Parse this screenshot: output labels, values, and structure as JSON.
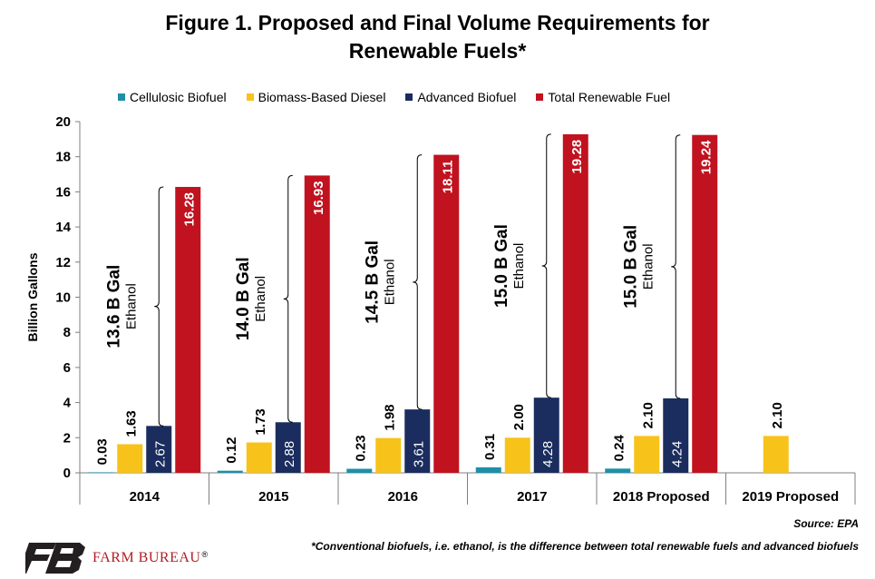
{
  "title_lines": [
    "Figure 1. Proposed and Final Volume Requirements for",
    "Renewable Fuels*"
  ],
  "source": "Source: EPA",
  "footnote": "*Conventional biofuels, i.e. ethanol, is the difference between total renewable fuels and advanced biofuels",
  "logo": {
    "text": "FARM BUREAU",
    "mark": "®",
    "brand_color": "#b01e23"
  },
  "chart_data": {
    "type": "bar",
    "categories": [
      "2014",
      "2015",
      "2016",
      "2017",
      "2018 Proposed",
      "2019 Proposed"
    ],
    "series": [
      {
        "name": "Cellulosic Biofuel",
        "color": "#1f8fa8",
        "values": [
          0.03,
          0.12,
          0.23,
          0.31,
          0.24,
          null
        ],
        "labels": [
          "0.03",
          "0.12",
          "0.23",
          "0.31",
          "0.24",
          ""
        ]
      },
      {
        "name": "Biomass-Based Diesel",
        "color": "#f7c31a",
        "values": [
          1.63,
          1.73,
          1.98,
          2.0,
          2.1,
          2.1
        ],
        "labels": [
          "1.63",
          "1.73",
          "1.98",
          "2.00",
          "2.10",
          "2.10"
        ]
      },
      {
        "name": "Advanced Biofuel",
        "color": "#1b2d5e",
        "values": [
          2.67,
          2.88,
          3.61,
          4.28,
          4.24,
          null
        ],
        "labels": [
          "2.67",
          "2.88",
          "3.61",
          "4.28",
          "4.24",
          ""
        ]
      },
      {
        "name": "Total Renewable Fuel",
        "color": "#c1121f",
        "values": [
          16.28,
          16.93,
          18.11,
          19.28,
          19.24,
          null
        ],
        "labels": [
          "16.28",
          "16.93",
          "18.11",
          "19.28",
          "19.24",
          ""
        ]
      }
    ],
    "ethanol_annotations": [
      {
        "category": "2014",
        "amount": "13.6 B Gal",
        "label": "Ethanol",
        "from": 2.67,
        "to": 16.28
      },
      {
        "category": "2015",
        "amount": "14.0 B Gal",
        "label": "Ethanol",
        "from": 2.88,
        "to": 16.93
      },
      {
        "category": "2016",
        "amount": "14.5 B Gal",
        "label": "Ethanol",
        "from": 3.61,
        "to": 18.11
      },
      {
        "category": "2017",
        "amount": "15.0 B Gal",
        "label": "Ethanol",
        "from": 4.28,
        "to": 19.28
      },
      {
        "category": "2018 Proposed",
        "amount": "15.0 B Gal",
        "label": "Ethanol",
        "from": 4.24,
        "to": 19.24
      }
    ],
    "ylabel": "Billion Gallons",
    "ylim": [
      0,
      20
    ],
    "yticks": [
      0,
      2,
      4,
      6,
      8,
      10,
      12,
      14,
      16,
      18,
      20
    ],
    "grid": false,
    "legend_position": "top"
  }
}
